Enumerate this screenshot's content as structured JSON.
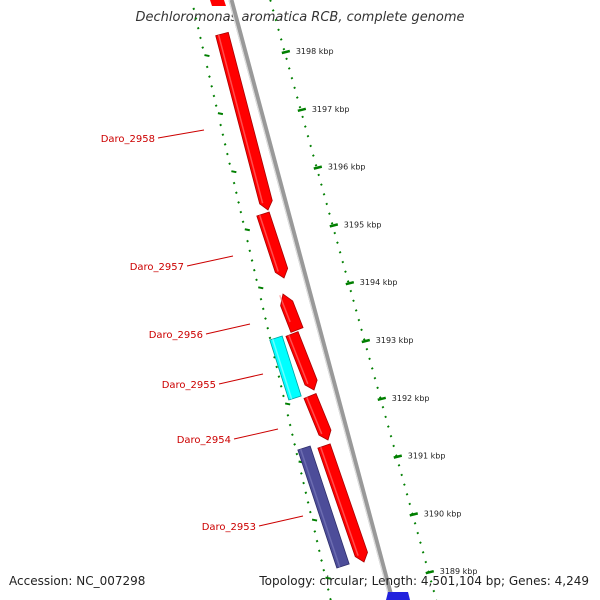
{
  "title": "Dechloromonas aromatica RCB, complete genome",
  "footer": {
    "accession": "Accession: NC_007298",
    "summary": "Topology: circular; Length: 4,501,104 bp; Genes: 4,249"
  },
  "colors": {
    "forward_gene": "#ff0000",
    "reverse_gene": "#00ffff",
    "other_gene": "#4d4d99",
    "backbone": "#999999",
    "ticks": "#007f00",
    "label": "#cc0000"
  },
  "ticks": [
    {
      "kbp": 3198,
      "label": "3198 kbp"
    },
    {
      "kbp": 3197,
      "label": "3197 kbp"
    },
    {
      "kbp": 3196,
      "label": "3196 kbp"
    },
    {
      "kbp": 3195,
      "label": "3195 kbp"
    },
    {
      "kbp": 3194,
      "label": "3194 kbp"
    },
    {
      "kbp": 3193,
      "label": "3193 kbp"
    },
    {
      "kbp": 3192,
      "label": "3192 kbp"
    },
    {
      "kbp": 3191,
      "label": "3191 kbp"
    },
    {
      "kbp": 3190,
      "label": "3190 kbp"
    },
    {
      "kbp": 3189,
      "label": "3189 kbp"
    }
  ],
  "genes": [
    {
      "name": "Daro_2958",
      "strand": "forward"
    },
    {
      "name": "Daro_2957",
      "strand": "forward"
    },
    {
      "name": "Daro_2956",
      "strand": "forward"
    },
    {
      "name": "Daro_2955",
      "strand": "reverse"
    },
    {
      "name": "Daro_2954",
      "strand": "forward"
    },
    {
      "name": "Daro_2953",
      "strand": "other"
    }
  ]
}
